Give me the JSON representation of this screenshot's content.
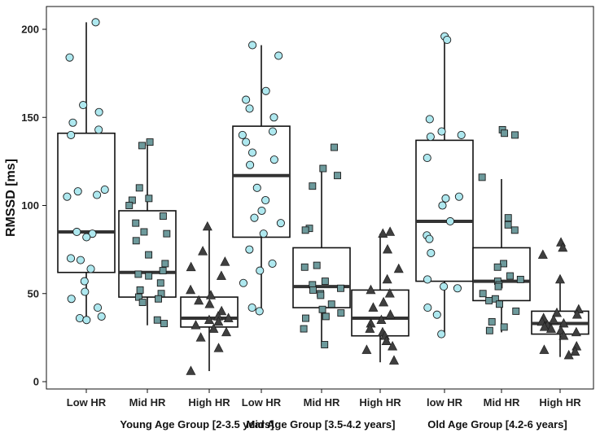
{
  "chart_data": {
    "type": "boxplot",
    "ylabel": "RMSSD [ms]",
    "ylim": [
      0,
      210
    ],
    "yticks": [
      0,
      50,
      100,
      150,
      200
    ],
    "grid": false,
    "colors": {
      "low": "#aee8ef",
      "mid": "#6d9a9c",
      "high": "#3f3f3f",
      "box_stroke": "#111111"
    },
    "groups": [
      {
        "label": "Young Age Group [2-3.5 years]"
      },
      {
        "label": "Mid Age Group [3.5-4.2 years]"
      },
      {
        "label": "Old Age Group [4.2-6 years]"
      }
    ],
    "categories": [
      "Low HR",
      "Mid HR",
      "High HR",
      "Low HR",
      "Mid HR",
      "High HR",
      "low HR",
      "Mid HR",
      "High HR"
    ],
    "boxes": [
      {
        "category": "Low HR",
        "group": 0,
        "marker": "circle",
        "fill": "low",
        "whisker_low": 35,
        "q1": 62,
        "median": 85,
        "q3": 141,
        "whisker_high": 204,
        "points": [
          204,
          184,
          157,
          153,
          147,
          143,
          140,
          109,
          108,
          106,
          105,
          85,
          84,
          82,
          70,
          69,
          64,
          57,
          51,
          47,
          42,
          37,
          36,
          35
        ]
      },
      {
        "category": "Mid HR",
        "group": 0,
        "marker": "square",
        "fill": "mid",
        "whisker_low": 32,
        "q1": 48,
        "median": 62,
        "q3": 97,
        "whisker_high": 136,
        "points": [
          136,
          134,
          110,
          104,
          103,
          100,
          94,
          90,
          85,
          84,
          80,
          72,
          67,
          63,
          61,
          60,
          56,
          52,
          50,
          48,
          47,
          45,
          35,
          33
        ]
      },
      {
        "category": "High HR",
        "group": 0,
        "marker": "triangle",
        "fill": "high",
        "whisker_low": 6,
        "q1": 31,
        "median": 36,
        "q3": 48,
        "whisker_high": 88,
        "points": [
          88,
          74,
          68,
          65,
          60,
          52,
          49,
          46,
          44,
          40,
          37,
          36,
          35,
          34,
          32,
          30,
          28,
          25,
          19,
          6
        ]
      },
      {
        "category": "Low HR",
        "group": 1,
        "marker": "circle",
        "fill": "low",
        "whisker_low": 40,
        "q1": 82,
        "median": 117,
        "q3": 145,
        "whisker_high": 191,
        "points": [
          191,
          185,
          165,
          160,
          155,
          150,
          142,
          140,
          136,
          130,
          126,
          123,
          110,
          103,
          97,
          93,
          90,
          84,
          75,
          67,
          63,
          56,
          42,
          40
        ]
      },
      {
        "category": "Mid HR",
        "group": 1,
        "marker": "square",
        "fill": "mid",
        "whisker_low": 20,
        "q1": 42,
        "median": 54,
        "q3": 76,
        "whisker_high": 122,
        "points": [
          133,
          121,
          117,
          111,
          87,
          86,
          66,
          65,
          57,
          55,
          53,
          52,
          50,
          49,
          44,
          41,
          39,
          37,
          36,
          30,
          21
        ]
      },
      {
        "category": "High HR",
        "group": 1,
        "marker": "triangle",
        "fill": "high",
        "whisker_low": 11,
        "q1": 26,
        "median": 36,
        "q3": 52,
        "whisker_high": 84,
        "points": [
          85,
          84,
          75,
          64,
          58,
          52,
          50,
          45,
          42,
          38,
          35,
          33,
          30,
          28,
          26,
          23,
          20,
          18,
          12
        ]
      },
      {
        "category": "low HR",
        "group": 2,
        "marker": "circle",
        "fill": "low",
        "whisker_low": 27,
        "q1": 57,
        "median": 91,
        "q3": 137,
        "whisker_high": 194,
        "points": [
          196,
          194,
          149,
          142,
          140,
          139,
          127,
          105,
          104,
          100,
          91,
          83,
          81,
          73,
          58,
          54,
          53,
          42,
          38,
          27
        ]
      },
      {
        "category": "Mid HR",
        "group": 2,
        "marker": "square",
        "fill": "mid",
        "whisker_low": 28,
        "q1": 46,
        "median": 57,
        "q3": 76,
        "whisker_high": 115,
        "points": [
          143,
          141,
          140,
          116,
          93,
          89,
          86,
          67,
          65,
          60,
          58,
          57,
          55,
          54,
          50,
          47,
          46,
          44,
          40,
          34,
          31,
          29
        ]
      },
      {
        "category": "High HR",
        "group": 2,
        "marker": "triangle",
        "fill": "high",
        "whisker_low": 14,
        "q1": 27,
        "median": 33,
        "q3": 40,
        "whisker_high": 56,
        "points": [
          79,
          76,
          72,
          58,
          41,
          39,
          38,
          36,
          35,
          34,
          33,
          32,
          31,
          30,
          29,
          28,
          26,
          20,
          18,
          17,
          15
        ]
      }
    ]
  }
}
